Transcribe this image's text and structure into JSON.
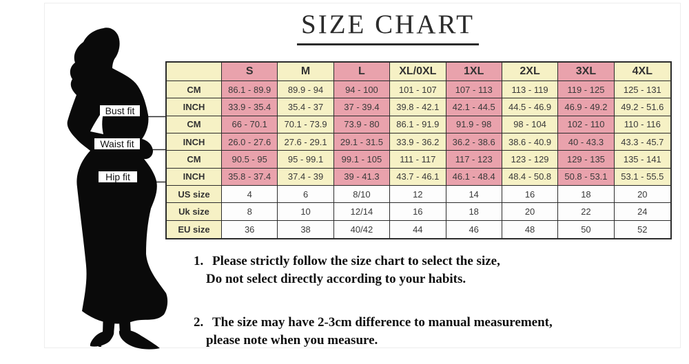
{
  "title": "SIZE CHART",
  "figure": {
    "labels": [
      {
        "text": "Bust fit"
      },
      {
        "text": "Waist fit"
      },
      {
        "text": "Hip fit"
      }
    ]
  },
  "chart_data": {
    "type": "table",
    "columns": [
      "",
      "S",
      "M",
      "L",
      "XL/0XL",
      "1XL",
      "2XL",
      "3XL",
      "4XL"
    ],
    "rows": [
      {
        "section": "bust",
        "label": "CM",
        "kind": "measure",
        "values": [
          "86.1 - 89.9",
          "89.9 - 94",
          "94 - 100",
          "101 - 107",
          "107 - 113",
          "113 - 119",
          "119 - 125",
          "125 - 131"
        ]
      },
      {
        "section": "bust",
        "label": "INCH",
        "kind": "measure",
        "values": [
          "33.9 - 35.4",
          "35.4 - 37",
          "37 - 39.4",
          "39.8 - 42.1",
          "42.1 - 44.5",
          "44.5 - 46.9",
          "46.9 - 49.2",
          "49.2 - 51.6"
        ]
      },
      {
        "section": "waist",
        "label": "CM",
        "kind": "measure",
        "values": [
          "66 - 70.1",
          "70.1 - 73.9",
          "73.9 - 80",
          "86.1 - 91.9",
          "91.9 - 98",
          "98 - 104",
          "102 - 110",
          "110 - 116"
        ]
      },
      {
        "section": "waist",
        "label": "INCH",
        "kind": "measure",
        "values": [
          "26.0 - 27.6",
          "27.6 - 29.1",
          "29.1 - 31.5",
          "33.9 - 36.2",
          "36.2 - 38.6",
          "38.6 - 40.9",
          "40 - 43.3",
          "43.3 - 45.7"
        ]
      },
      {
        "section": "hip",
        "label": "CM",
        "kind": "measure",
        "values": [
          "90.5 - 95",
          "95 - 99.1",
          "99.1 - 105",
          "111 - 117",
          "117 - 123",
          "123 - 129",
          "129 - 135",
          "135 - 141"
        ]
      },
      {
        "section": "hip",
        "label": "INCH",
        "kind": "measure",
        "values": [
          "35.8 - 37.4",
          "37.4 - 39",
          "39 - 41.3",
          "43.7 - 46.1",
          "46.1 - 48.4",
          "48.4 - 50.8",
          "50.8 - 53.1",
          "53.1 - 55.5"
        ]
      },
      {
        "section": "conversion",
        "label": "US size",
        "kind": "size",
        "values": [
          "4",
          "6",
          "8/10",
          "12",
          "14",
          "16",
          "18",
          "20"
        ]
      },
      {
        "section": "conversion",
        "label": "Uk size",
        "kind": "size",
        "values": [
          "8",
          "10",
          "12/14",
          "16",
          "18",
          "20",
          "22",
          "24"
        ]
      },
      {
        "section": "conversion",
        "label": "EU size",
        "kind": "size",
        "values": [
          "36",
          "38",
          "40/42",
          "44",
          "46",
          "48",
          "50",
          "52"
        ]
      }
    ]
  },
  "notes": [
    {
      "number": "1.",
      "lines": [
        "Please strictly follow the size chart to select the size,",
        "Do not select directly according to your habits."
      ]
    },
    {
      "number": "2.",
      "lines": [
        "The size may have 2-3cm difference  to manual measurement,",
        "please note when you measure."
      ]
    }
  ],
  "colors": {
    "pink": "#e9a2ac",
    "yellow": "#f6f1c5",
    "white_cell": "#fdfdfd",
    "line": "#2b2b2b",
    "text": "#3a3a3a",
    "title": "#2b2b2b",
    "silhouette": "#0a0a0a",
    "frame": "#ededed"
  }
}
